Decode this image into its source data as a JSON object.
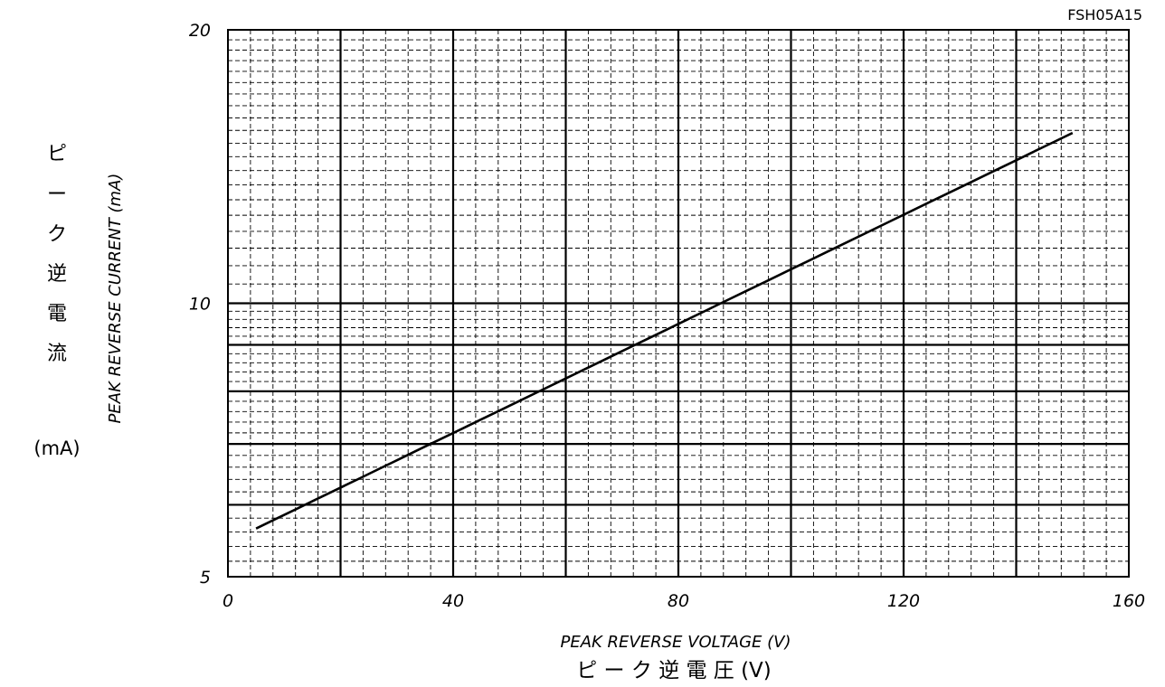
{
  "chart_data": {
    "type": "line",
    "doc_id": "FSH05A15",
    "xlabel_en": "PEAK REVERSE VOLTAGE (V)",
    "xlabel_jp": "ピ ー ク 逆 電 圧 (V)",
    "ylabel_en": "PEAK REVERSE CURRENT (mA)",
    "ylabel_jp_chars": [
      "ピ",
      "ー",
      "ク",
      "逆",
      "電",
      "流"
    ],
    "ylabel_jp_unit": "(mA)",
    "xlim": [
      0,
      160
    ],
    "ylim": [
      5,
      20
    ],
    "y_scale": "log",
    "x_ticks": [
      "0",
      "40",
      "80",
      "120",
      "160"
    ],
    "y_ticks": [
      "5",
      "10",
      "20"
    ],
    "grid": true,
    "x": [
      5,
      150
    ],
    "y": [
      5.65,
      15.4
    ],
    "line_color": "#000000"
  }
}
